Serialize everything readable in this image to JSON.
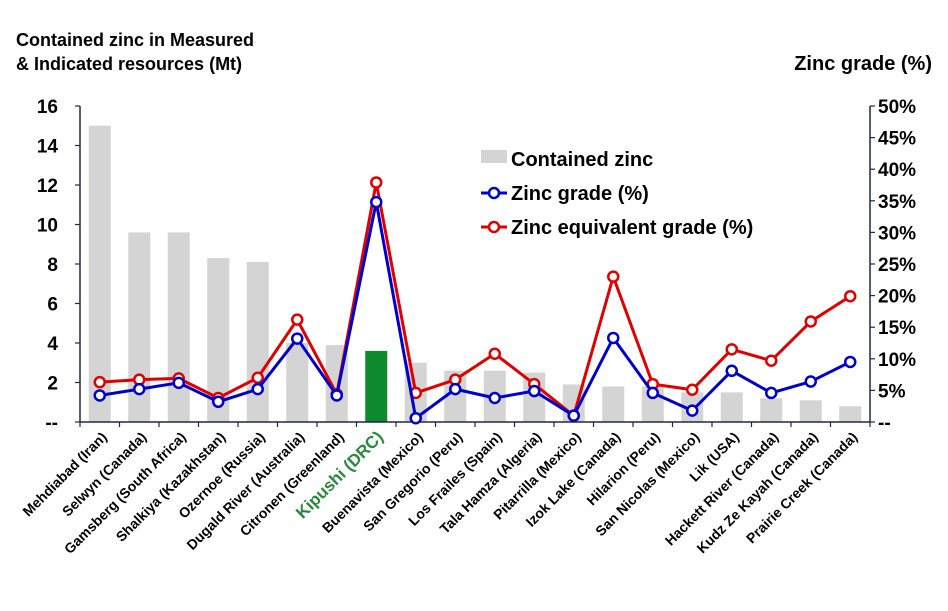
{
  "chart_data": {
    "type": "bar+line",
    "left_axis_title_lines": [
      "Contained zinc in Measured",
      "& Indicated resources (Mt)"
    ],
    "right_axis_title": "Zinc grade (%)",
    "left_ticks": [
      "--",
      "2",
      "4",
      "6",
      "8",
      "10",
      "12",
      "14",
      "16"
    ],
    "right_ticks": [
      "--",
      "5%",
      "10%",
      "15%",
      "20%",
      "25%",
      "30%",
      "35%",
      "40%",
      "45%",
      "50%"
    ],
    "ylim_left": [
      0,
      16
    ],
    "ylim_right": [
      0,
      50
    ],
    "highlight_category": "Kipushi (DRC)",
    "colors": {
      "bar": "#d4d4d4",
      "highlight_bar": "#0c8a2c",
      "zinc_grade": "#0000cc",
      "zinc_eq_grade": "#e00000",
      "highlight_label": "#2a8a3a"
    },
    "categories": [
      "Mehdiabad (Iran)",
      "Selwyn (Canada)",
      "Gamsberg (South Africa)",
      "Shalkiya (Kazakhstan)",
      "Ozernoe (Russia)",
      "Dugald River (Australia)",
      "Citronen (Greenland)",
      "Kipushi (DRC)",
      "Buenavista (Mexico)",
      "San Gregorio (Peru)",
      "Los Frailes (Spain)",
      "Tala Hamza (Algeria)",
      "Pitarrilla (Mexico)",
      "Izok Lake (Canada)",
      "Hilarion (Peru)",
      "San Nicolas (Mexico)",
      "Lik (USA)",
      "Hackett River (Canada)",
      "Kudz Ze Kayah (Canada)",
      "Prairie Creek (Canada)"
    ],
    "series": [
      {
        "name": "Contained zinc",
        "axis": "left",
        "kind": "bar",
        "values": [
          15.0,
          9.6,
          9.6,
          8.3,
          8.1,
          4.0,
          3.9,
          3.6,
          3.0,
          2.6,
          2.6,
          2.5,
          1.9,
          1.8,
          1.8,
          1.5,
          1.5,
          1.2,
          1.1,
          0.8
        ]
      },
      {
        "name": "Zinc grade (%)",
        "axis": "right",
        "kind": "line",
        "values": [
          4.2,
          5.2,
          6.2,
          3.2,
          5.2,
          13.2,
          4.2,
          34.8,
          0.6,
          5.2,
          3.8,
          4.9,
          1.0,
          13.3,
          4.6,
          1.8,
          8.1,
          4.6,
          6.4,
          9.5
        ]
      },
      {
        "name": "Zinc equivalent grade (%)",
        "axis": "right",
        "kind": "line",
        "values": [
          6.3,
          6.7,
          6.9,
          3.8,
          7.0,
          16.2,
          4.4,
          37.9,
          4.6,
          6.7,
          10.8,
          6.0,
          1.0,
          23.0,
          6.0,
          5.1,
          11.5,
          9.7,
          15.9,
          19.9
        ]
      }
    ],
    "legend": {
      "placement": "upper-center",
      "entries": [
        "Contained zinc",
        "Zinc grade (%)",
        "Zinc equivalent grade (%)"
      ]
    }
  }
}
